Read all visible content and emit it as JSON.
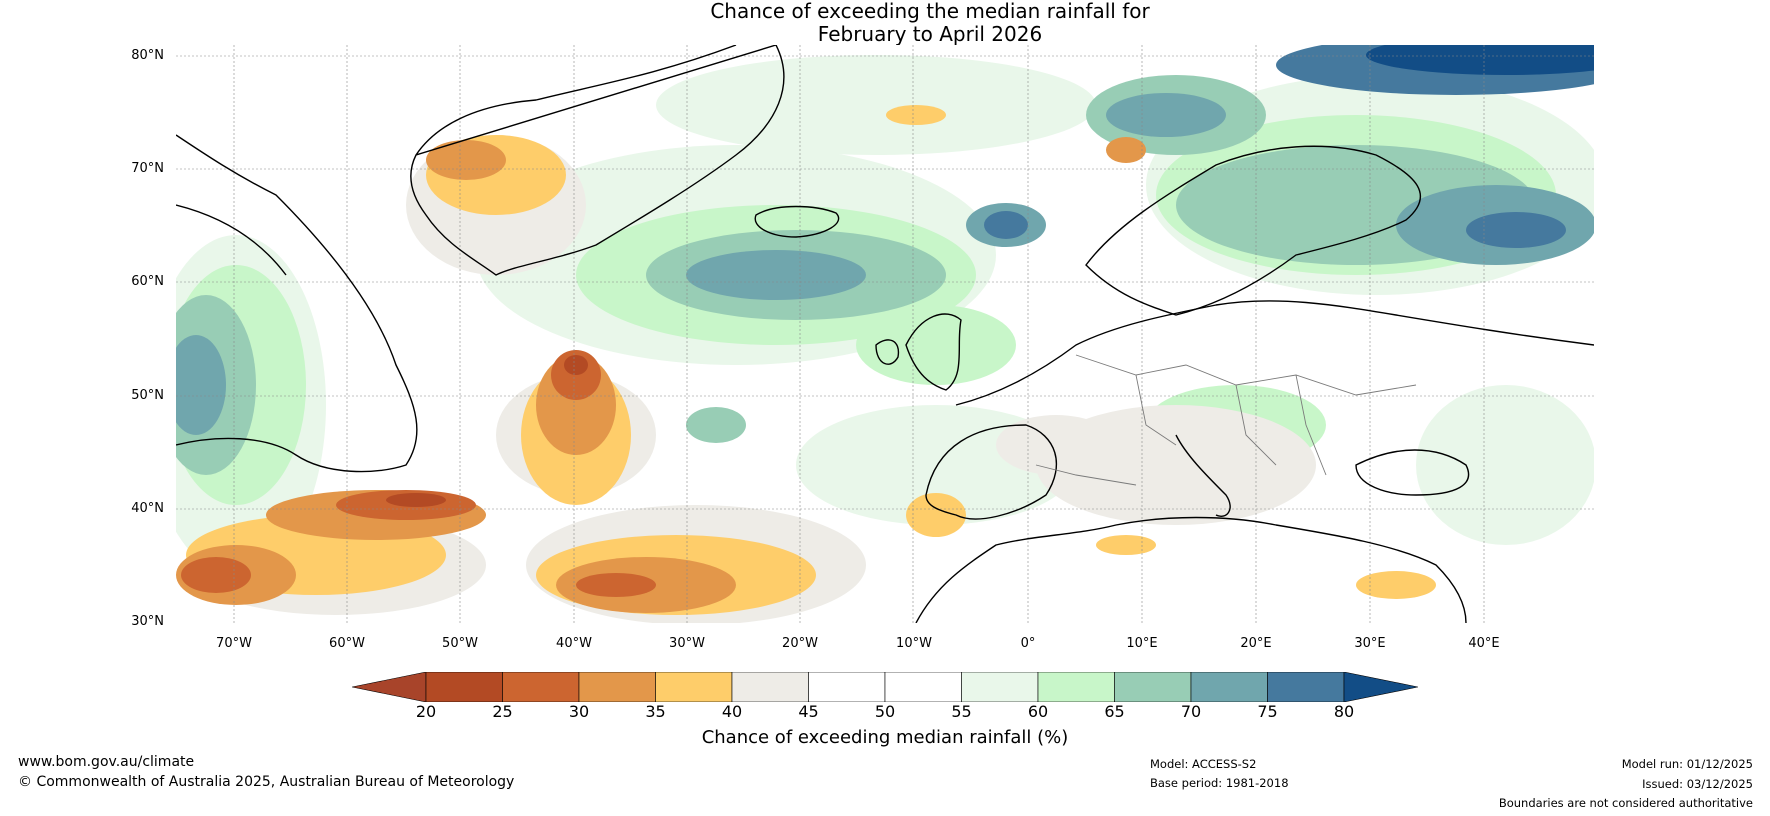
{
  "title": {
    "line1": "Chance of exceeding the median rainfall for",
    "line2": "February to April 2026"
  },
  "map": {
    "lat_labels": [
      "80°N",
      "70°N",
      "60°N",
      "50°N",
      "40°N",
      "30°N"
    ],
    "lon_labels": [
      "70°W",
      "60°W",
      "50°W",
      "40°W",
      "30°W",
      "20°W",
      "10°W",
      "0°",
      "10°E",
      "20°E",
      "30°E",
      "40°E"
    ]
  },
  "colorbar": {
    "ticks": [
      "20",
      "25",
      "30",
      "35",
      "40",
      "45",
      "50",
      "55",
      "60",
      "65",
      "70",
      "75",
      "80"
    ],
    "colors": [
      "#a8442a",
      "#b34a24",
      "#cc6530",
      "#e3974a",
      "#fecd6a",
      "#eeece7",
      "#ffffff",
      "#ffffff",
      "#e9f7ea",
      "#c8f6c9",
      "#98cdb5",
      "#70a6ad",
      "#45799e",
      "#124d86"
    ],
    "label": "Chance of exceeding median rainfall (%)"
  },
  "footer": {
    "website": "www.bom.gov.au/climate",
    "copyright": "© Commonwealth of Australia 2025, Australian Bureau of Meteorology",
    "model": "Model: ACCESS-S2",
    "base_period": "Base period: 1981-2018",
    "model_run": "Model run: 01/12/2025",
    "issued": "Issued: 03/12/2025",
    "disclaimer": "Boundaries are not considered authoritative"
  }
}
